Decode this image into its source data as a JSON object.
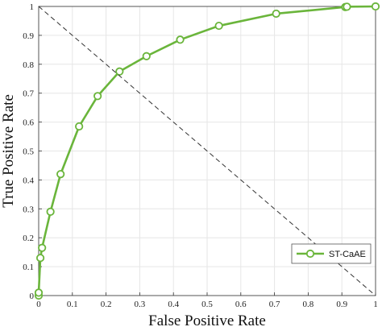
{
  "chart_data": {
    "type": "line",
    "title": "",
    "xlabel": "False Positive Rate",
    "ylabel": "True Positive Rate",
    "xlim": [
      0,
      1
    ],
    "ylim": [
      0,
      1
    ],
    "x_ticks": [
      "0",
      "0.1",
      "0.2",
      "0.3",
      "0.4",
      "0.5",
      "0.6",
      "0.7",
      "0.8",
      "0.9",
      "1"
    ],
    "y_ticks": [
      "0",
      "0.1",
      "0.2",
      "0.3",
      "0.4",
      "0.5",
      "0.6",
      "0.7",
      "0.8",
      "0.9",
      "1"
    ],
    "grid": true,
    "legend_position": "bottom-right",
    "series": [
      {
        "name": "ST-CaAE",
        "color": "#6ab53b",
        "marker": "circle",
        "x": [
          0,
          0,
          0.005,
          0.01,
          0.035,
          0.065,
          0.12,
          0.175,
          0.24,
          0.32,
          0.42,
          0.535,
          0.705,
          0.91,
          0.915,
          1
        ],
        "y": [
          0,
          0.01,
          0.13,
          0.165,
          0.29,
          0.42,
          0.585,
          0.69,
          0.775,
          0.828,
          0.885,
          0.933,
          0.975,
          0.998,
          0.999,
          1.0
        ]
      },
      {
        "name": "",
        "color": "#333333",
        "style": "dashed",
        "x": [
          0,
          1
        ],
        "y": [
          1,
          0
        ]
      }
    ]
  }
}
